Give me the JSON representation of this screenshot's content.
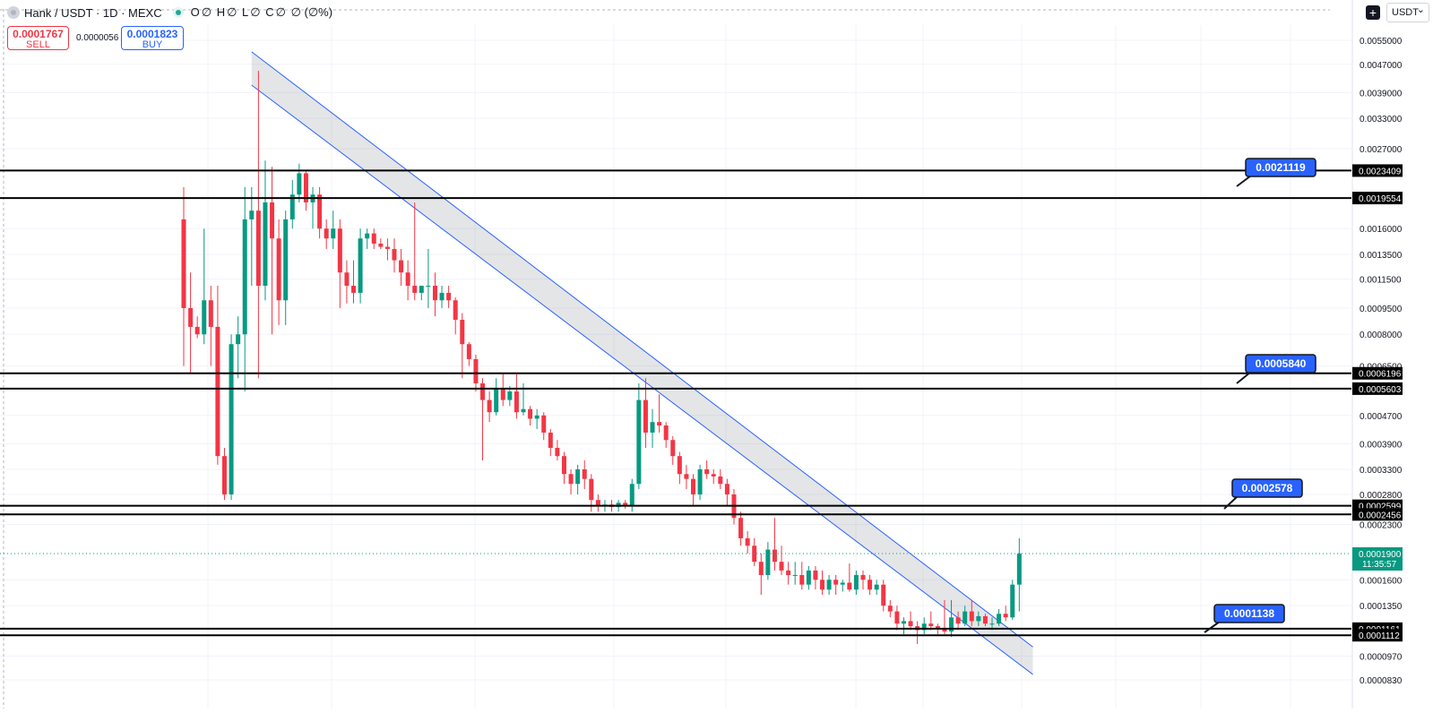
{
  "header": {
    "symbol": "Hank / USDT · 1D · MEXC",
    "ohlc": {
      "o_label": "O",
      "o_value": "∅",
      "h_label": "H",
      "h_value": "∅",
      "l_label": "L",
      "l_value": "∅",
      "c_label": "C",
      "c_value": "∅",
      "change": "∅ (∅%)"
    }
  },
  "trade": {
    "sell_price": "0.0001767",
    "sell_label": "SELL",
    "spread": "0.0000056",
    "buy_price": "0.0001823",
    "buy_label": "BUY"
  },
  "axis_tools": {
    "plus_icon": "+",
    "currency": "USDT"
  },
  "colors": {
    "up": "#089981",
    "down": "#f23645",
    "accent": "#2962ff",
    "level_line": "#000000",
    "grid": "#f0f3fa"
  },
  "chart_data": {
    "type": "candlestick",
    "symbol": "Hank / USDT",
    "interval": "1D",
    "exchange": "MEXC",
    "y_scale": "log",
    "y_ticks": [
      "0.0055000",
      "0.0047000",
      "0.0039000",
      "0.0033000",
      "0.0027000",
      "0.0016000",
      "0.0013500",
      "0.0011500",
      "0.0009500",
      "0.0008000",
      "0.0006500",
      "0.0004700",
      "0.0003900",
      "0.0003300",
      "0.0002800",
      "0.0002300",
      "0.0001600",
      "0.0001350",
      "0.0000970",
      "0.0000830"
    ],
    "tick_values": [
      0.0055,
      0.0047,
      0.0039,
      0.0033,
      0.0027,
      0.0016,
      0.00135,
      0.00115,
      0.00095,
      0.0008,
      0.00065,
      0.00047,
      0.00039,
      0.00033,
      0.00028,
      0.00023,
      0.00016,
      0.000135,
      9.7e-05,
      8.3e-05
    ],
    "current_price": {
      "value": 0.00019,
      "label": "0.0001900",
      "countdown": "11:35:57"
    },
    "levels": [
      {
        "value": 0.0023409,
        "label": "0.0023409"
      },
      {
        "value": 0.0019554,
        "label": "0.0019554"
      },
      {
        "value": 0.0006196,
        "label": "0.0006196"
      },
      {
        "value": 0.0005603,
        "label": "0.0005603"
      },
      {
        "value": 0.0002599,
        "label": "0.0002599"
      },
      {
        "value": 0.0002456,
        "label": "0.0002456"
      },
      {
        "value": 0.0001161,
        "label": "0.0001161"
      },
      {
        "value": 0.0001112,
        "label": "0.0001112"
      }
    ],
    "zone_callouts": [
      {
        "label": "0.0021119",
        "value": 0.0021119
      },
      {
        "label": "0.0005840",
        "value": 0.000584
      },
      {
        "label": "0.0002578",
        "value": 0.0002578
      },
      {
        "label": "0.0001138",
        "value": 0.0001138
      }
    ],
    "channel": {
      "start_index": 10,
      "end_index": 125,
      "upper_start": 0.0051,
      "upper_end": 0.000103,
      "lower_start": 0.0041,
      "lower_end": 8.6e-05
    },
    "candles": [
      {
        "o": 0.0017,
        "h": 0.0021,
        "l": 0.00065,
        "c": 0.00095
      },
      {
        "o": 0.00095,
        "h": 0.0012,
        "l": 0.00062,
        "c": 0.00084
      },
      {
        "o": 0.00084,
        "h": 0.0009,
        "l": 0.00078,
        "c": 0.0008
      },
      {
        "o": 0.0008,
        "h": 0.0016,
        "l": 0.00075,
        "c": 0.001
      },
      {
        "o": 0.001,
        "h": 0.0011,
        "l": 0.00065,
        "c": 0.00084
      },
      {
        "o": 0.00084,
        "h": 0.0011,
        "l": 0.00034,
        "c": 0.00036
      },
      {
        "o": 0.00036,
        "h": 0.00038,
        "l": 0.00027,
        "c": 0.00028
      },
      {
        "o": 0.00028,
        "h": 0.0008,
        "l": 0.00027,
        "c": 0.00075
      },
      {
        "o": 0.00075,
        "h": 0.0009,
        "l": 0.0006,
        "c": 0.0008
      },
      {
        "o": 0.0008,
        "h": 0.0021,
        "l": 0.00055,
        "c": 0.0017
      },
      {
        "o": 0.0017,
        "h": 0.0021,
        "l": 0.0011,
        "c": 0.0018
      },
      {
        "o": 0.0018,
        "h": 0.0045,
        "l": 0.0006,
        "c": 0.0011
      },
      {
        "o": 0.0011,
        "h": 0.0025,
        "l": 0.001,
        "c": 0.0019
      },
      {
        "o": 0.0019,
        "h": 0.0024,
        "l": 0.0008,
        "c": 0.0015
      },
      {
        "o": 0.0015,
        "h": 0.0017,
        "l": 0.00085,
        "c": 0.001
      },
      {
        "o": 0.001,
        "h": 0.0018,
        "l": 0.00085,
        "c": 0.0017
      },
      {
        "o": 0.0017,
        "h": 0.0022,
        "l": 0.0016,
        "c": 0.002
      },
      {
        "o": 0.002,
        "h": 0.00245,
        "l": 0.0019,
        "c": 0.0023
      },
      {
        "o": 0.0023,
        "h": 0.00235,
        "l": 0.0018,
        "c": 0.0019
      },
      {
        "o": 0.0019,
        "h": 0.0021,
        "l": 0.0016,
        "c": 0.002
      },
      {
        "o": 0.002,
        "h": 0.0021,
        "l": 0.0015,
        "c": 0.0016
      },
      {
        "o": 0.0016,
        "h": 0.0017,
        "l": 0.0014,
        "c": 0.0015
      },
      {
        "o": 0.0015,
        "h": 0.0018,
        "l": 0.0014,
        "c": 0.0016
      },
      {
        "o": 0.0016,
        "h": 0.0017,
        "l": 0.00095,
        "c": 0.0012
      },
      {
        "o": 0.0012,
        "h": 0.0013,
        "l": 0.00098,
        "c": 0.0011
      },
      {
        "o": 0.0011,
        "h": 0.0013,
        "l": 0.00098,
        "c": 0.00105
      },
      {
        "o": 0.00105,
        "h": 0.0016,
        "l": 0.00098,
        "c": 0.0015
      },
      {
        "o": 0.0015,
        "h": 0.0016,
        "l": 0.0014,
        "c": 0.00155
      },
      {
        "o": 0.00155,
        "h": 0.0016,
        "l": 0.0014,
        "c": 0.00145
      },
      {
        "o": 0.00145,
        "h": 0.0015,
        "l": 0.0014,
        "c": 0.00142
      },
      {
        "o": 0.00142,
        "h": 0.0015,
        "l": 0.0013,
        "c": 0.0014
      },
      {
        "o": 0.0014,
        "h": 0.0015,
        "l": 0.0012,
        "c": 0.0013
      },
      {
        "o": 0.0013,
        "h": 0.0014,
        "l": 0.0011,
        "c": 0.0012
      },
      {
        "o": 0.0012,
        "h": 0.0013,
        "l": 0.001,
        "c": 0.0011
      },
      {
        "o": 0.0011,
        "h": 0.0019,
        "l": 0.001,
        "c": 0.00105
      },
      {
        "o": 0.00105,
        "h": 0.0011,
        "l": 0.001,
        "c": 0.0011
      },
      {
        "o": 0.0011,
        "h": 0.0014,
        "l": 0.00095,
        "c": 0.0011
      },
      {
        "o": 0.0011,
        "h": 0.0012,
        "l": 0.0009,
        "c": 0.001
      },
      {
        "o": 0.001,
        "h": 0.0011,
        "l": 0.00095,
        "c": 0.00105
      },
      {
        "o": 0.00105,
        "h": 0.0011,
        "l": 0.00095,
        "c": 0.001
      },
      {
        "o": 0.001,
        "h": 0.00102,
        "l": 0.0008,
        "c": 0.00088
      },
      {
        "o": 0.00088,
        "h": 0.00092,
        "l": 0.0006,
        "c": 0.00075
      },
      {
        "o": 0.00075,
        "h": 0.00076,
        "l": 0.00065,
        "c": 0.00068
      },
      {
        "o": 0.00068,
        "h": 0.0007,
        "l": 0.00055,
        "c": 0.00058
      },
      {
        "o": 0.00058,
        "h": 0.0006,
        "l": 0.00035,
        "c": 0.00052
      },
      {
        "o": 0.00052,
        "h": 0.00055,
        "l": 0.00045,
        "c": 0.00048
      },
      {
        "o": 0.00048,
        "h": 0.0006,
        "l": 0.00047,
        "c": 0.00056
      },
      {
        "o": 0.00056,
        "h": 0.00062,
        "l": 0.0005,
        "c": 0.00052
      },
      {
        "o": 0.00052,
        "h": 0.00057,
        "l": 0.0005,
        "c": 0.00055
      },
      {
        "o": 0.00055,
        "h": 0.00062,
        "l": 0.00046,
        "c": 0.00048
      },
      {
        "o": 0.00048,
        "h": 0.00058,
        "l": 0.00047,
        "c": 0.00049
      },
      {
        "o": 0.00049,
        "h": 0.0005,
        "l": 0.00044,
        "c": 0.00046
      },
      {
        "o": 0.00046,
        "h": 0.00049,
        "l": 0.00043,
        "c": 0.00047
      },
      {
        "o": 0.00047,
        "h": 0.00048,
        "l": 0.0004,
        "c": 0.00042
      },
      {
        "o": 0.00042,
        "h": 0.00043,
        "l": 0.00036,
        "c": 0.00038
      },
      {
        "o": 0.00038,
        "h": 0.0004,
        "l": 0.00035,
        "c": 0.00036
      },
      {
        "o": 0.00036,
        "h": 0.00037,
        "l": 0.0003,
        "c": 0.00032
      },
      {
        "o": 0.00032,
        "h": 0.00033,
        "l": 0.00028,
        "c": 0.0003
      },
      {
        "o": 0.0003,
        "h": 0.00034,
        "l": 0.00028,
        "c": 0.00033
      },
      {
        "o": 0.00033,
        "h": 0.00035,
        "l": 0.00029,
        "c": 0.00031
      },
      {
        "o": 0.00031,
        "h": 0.00032,
        "l": 0.00025,
        "c": 0.00027
      },
      {
        "o": 0.00027,
        "h": 0.00028,
        "l": 0.00025,
        "c": 0.00026
      },
      {
        "o": 0.00026,
        "h": 0.00027,
        "l": 0.00025,
        "c": 0.000262
      },
      {
        "o": 0.000262,
        "h": 0.00027,
        "l": 0.00025,
        "c": 0.000258
      },
      {
        "o": 0.000258,
        "h": 0.00027,
        "l": 0.00025,
        "c": 0.000265
      },
      {
        "o": 0.000265,
        "h": 0.00027,
        "l": 0.000255,
        "c": 0.00026
      },
      {
        "o": 0.00026,
        "h": 0.00031,
        "l": 0.00025,
        "c": 0.0003
      },
      {
        "o": 0.0003,
        "h": 0.00058,
        "l": 0.00029,
        "c": 0.00052
      },
      {
        "o": 0.00052,
        "h": 0.0006,
        "l": 0.00038,
        "c": 0.00042
      },
      {
        "o": 0.00042,
        "h": 0.00049,
        "l": 0.00038,
        "c": 0.00045
      },
      {
        "o": 0.00045,
        "h": 0.00054,
        "l": 0.00042,
        "c": 0.00044
      },
      {
        "o": 0.00044,
        "h": 0.00045,
        "l": 0.00038,
        "c": 0.0004
      },
      {
        "o": 0.0004,
        "h": 0.00041,
        "l": 0.00034,
        "c": 0.00036
      },
      {
        "o": 0.00036,
        "h": 0.00037,
        "l": 0.0003,
        "c": 0.00032
      },
      {
        "o": 0.00032,
        "h": 0.00034,
        "l": 0.00029,
        "c": 0.00031
      },
      {
        "o": 0.00031,
        "h": 0.00032,
        "l": 0.00026,
        "c": 0.00028
      },
      {
        "o": 0.00028,
        "h": 0.00034,
        "l": 0.00027,
        "c": 0.00033
      },
      {
        "o": 0.00033,
        "h": 0.00035,
        "l": 0.00031,
        "c": 0.00032
      },
      {
        "o": 0.00032,
        "h": 0.00033,
        "l": 0.0003,
        "c": 0.000315
      },
      {
        "o": 0.000315,
        "h": 0.00033,
        "l": 0.00029,
        "c": 0.0003
      },
      {
        "o": 0.0003,
        "h": 0.00031,
        "l": 0.00026,
        "c": 0.00028
      },
      {
        "o": 0.00028,
        "h": 0.00029,
        "l": 0.00023,
        "c": 0.00024
      },
      {
        "o": 0.00024,
        "h": 0.00025,
        "l": 0.0002,
        "c": 0.00021
      },
      {
        "o": 0.00021,
        "h": 0.00022,
        "l": 0.00019,
        "c": 0.0002
      },
      {
        "o": 0.0002,
        "h": 0.00021,
        "l": 0.000175,
        "c": 0.00018
      },
      {
        "o": 0.00018,
        "h": 0.00019,
        "l": 0.000145,
        "c": 0.000165
      },
      {
        "o": 0.000165,
        "h": 0.000205,
        "l": 0.00016,
        "c": 0.000195
      },
      {
        "o": 0.000195,
        "h": 0.00024,
        "l": 0.00017,
        "c": 0.00018
      },
      {
        "o": 0.00018,
        "h": 0.0002,
        "l": 0.000165,
        "c": 0.00017
      },
      {
        "o": 0.00017,
        "h": 0.00018,
        "l": 0.000155,
        "c": 0.000165
      },
      {
        "o": 0.000165,
        "h": 0.00018,
        "l": 0.000155,
        "c": 0.000165
      },
      {
        "o": 0.000165,
        "h": 0.00018,
        "l": 0.00015,
        "c": 0.000155
      },
      {
        "o": 0.000155,
        "h": 0.000175,
        "l": 0.00015,
        "c": 0.00017
      },
      {
        "o": 0.00017,
        "h": 0.000175,
        "l": 0.00015,
        "c": 0.00016
      },
      {
        "o": 0.00016,
        "h": 0.00017,
        "l": 0.000145,
        "c": 0.00015
      },
      {
        "o": 0.00015,
        "h": 0.000165,
        "l": 0.000145,
        "c": 0.00016
      },
      {
        "o": 0.00016,
        "h": 0.000165,
        "l": 0.000145,
        "c": 0.000155
      },
      {
        "o": 0.000155,
        "h": 0.00016,
        "l": 0.000148,
        "c": 0.000157
      },
      {
        "o": 0.000157,
        "h": 0.000178,
        "l": 0.000148,
        "c": 0.00015
      },
      {
        "o": 0.00015,
        "h": 0.00017,
        "l": 0.000145,
        "c": 0.000165
      },
      {
        "o": 0.000165,
        "h": 0.00017,
        "l": 0.00015,
        "c": 0.00016
      },
      {
        "o": 0.00016,
        "h": 0.000165,
        "l": 0.000145,
        "c": 0.00015
      },
      {
        "o": 0.00015,
        "h": 0.00016,
        "l": 0.000145,
        "c": 0.000155
      },
      {
        "o": 0.000155,
        "h": 0.00016,
        "l": 0.00013,
        "c": 0.000135
      },
      {
        "o": 0.000135,
        "h": 0.00014,
        "l": 0.000125,
        "c": 0.00013
      },
      {
        "o": 0.00013,
        "h": 0.000135,
        "l": 0.000115,
        "c": 0.00012
      },
      {
        "o": 0.00012,
        "h": 0.000125,
        "l": 0.000112,
        "c": 0.000122
      },
      {
        "o": 0.000122,
        "h": 0.00013,
        "l": 0.000115,
        "c": 0.000118
      },
      {
        "o": 0.000118,
        "h": 0.000122,
        "l": 0.000105,
        "c": 0.000115
      },
      {
        "o": 0.000115,
        "h": 0.000125,
        "l": 0.000112,
        "c": 0.00012
      },
      {
        "o": 0.00012,
        "h": 0.00013,
        "l": 0.000115,
        "c": 0.000118
      },
      {
        "o": 0.000118,
        "h": 0.00012,
        "l": 0.000112,
        "c": 0.000116
      },
      {
        "o": 0.000116,
        "h": 0.00014,
        "l": 0.000112,
        "c": 0.000114
      },
      {
        "o": 0.000114,
        "h": 0.00014,
        "l": 0.00011,
        "c": 0.000125
      },
      {
        "o": 0.000125,
        "h": 0.00013,
        "l": 0.000115,
        "c": 0.00012
      },
      {
        "o": 0.00012,
        "h": 0.000135,
        "l": 0.000118,
        "c": 0.00013
      },
      {
        "o": 0.00013,
        "h": 0.00014,
        "l": 0.000118,
        "c": 0.000122
      },
      {
        "o": 0.000122,
        "h": 0.00013,
        "l": 0.000118,
        "c": 0.000126
      },
      {
        "o": 0.000126,
        "h": 0.000128,
        "l": 0.000118,
        "c": 0.00012
      },
      {
        "o": 0.00012,
        "h": 0.000125,
        "l": 0.000115,
        "c": 0.00012
      },
      {
        "o": 0.00012,
        "h": 0.000132,
        "l": 0.000118,
        "c": 0.000128
      },
      {
        "o": 0.000128,
        "h": 0.000135,
        "l": 0.000122,
        "c": 0.000125
      },
      {
        "o": 0.000125,
        "h": 0.00016,
        "l": 0.000123,
        "c": 0.000155
      },
      {
        "o": 0.000155,
        "h": 0.00021,
        "l": 0.00013,
        "c": 0.00019
      }
    ]
  }
}
